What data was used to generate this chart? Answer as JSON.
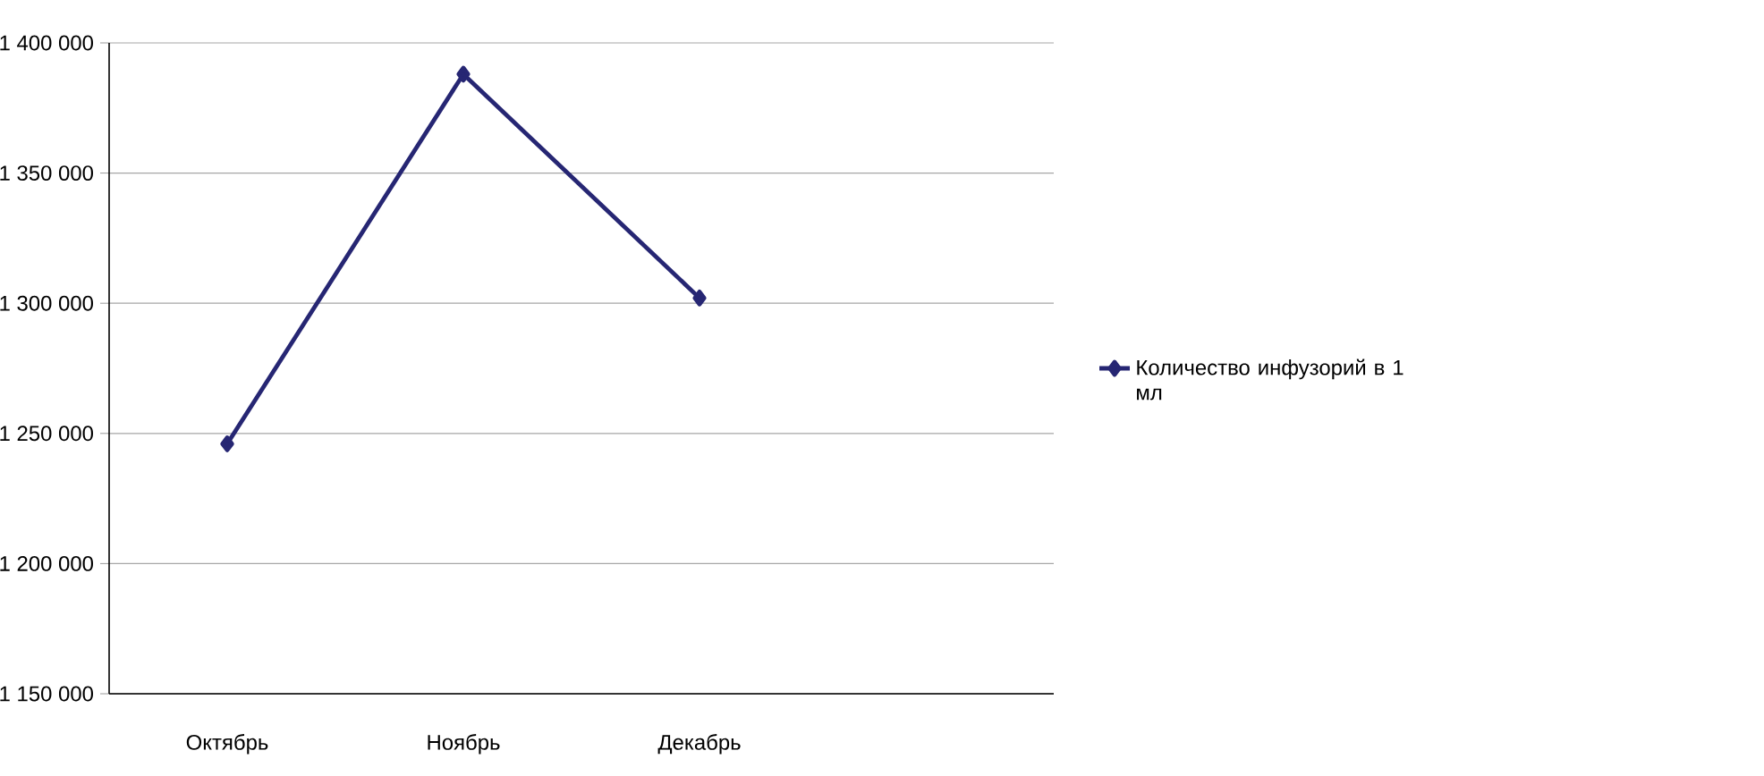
{
  "chart_data": {
    "type": "line",
    "categories": [
      "Октябрь",
      "Ноябрь",
      "Декабрь",
      null
    ],
    "series": [
      {
        "name": "Количество инфузорий в 1 мл",
        "color": "#262673",
        "values": [
          1246000,
          1388000,
          1302000,
          null
        ]
      }
    ],
    "ylim": [
      1150000,
      1400000
    ],
    "yticks": [
      {
        "value": 1150000,
        "label": "1 150 000"
      },
      {
        "value": 1200000,
        "label": "1 200 000"
      },
      {
        "value": 1250000,
        "label": "1 250 000"
      },
      {
        "value": 1300000,
        "label": "1 300 000"
      },
      {
        "value": 1350000,
        "label": "1 350 000"
      },
      {
        "value": 1400000,
        "label": "1 400 000"
      }
    ],
    "grid": "y",
    "legend": "right",
    "marker": "diamond",
    "line_style": "solid"
  }
}
